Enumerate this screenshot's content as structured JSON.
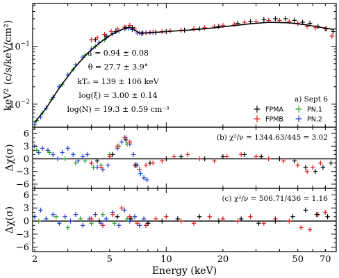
{
  "chart_data": {
    "type": "scatter",
    "shared_x": {
      "label": "Energy (keV)",
      "scale": "log",
      "range": [
        1.95,
        80
      ],
      "ticks": [
        2,
        5,
        10,
        20,
        50,
        70
      ],
      "tick_labels": [
        "2",
        "5",
        "10",
        "20",
        "50",
        "70"
      ]
    },
    "colors": {
      "FPMA": "#000000",
      "FPMB": "#e41a1c",
      "PN,1": "#2ca02c",
      "PN,2": "#1f3fd6",
      "model": "#000000"
    },
    "panels": [
      {
        "id": "spectrum",
        "ylabel": "keV² (c/s/keV/cm²)",
        "yscale": "log",
        "ylim": [
          0.004,
          0.55
        ],
        "ytick_labels": [
          {
            "value": 0.1,
            "base": "10",
            "exp": "−1"
          },
          {
            "value": 0.01,
            "base": "10",
            "exp": "−2"
          }
        ],
        "annotations": [
          "a = 0.94 ± 0.08",
          "θ = 27.7 ± 3.9°",
          "kTₑ = 139 ± 106 keV",
          "log(ξ) = 3.00 ± 0.14",
          "log(N) = 19.3 ± 0.59 cm⁻³"
        ],
        "panel_label": "a) Sept 6",
        "legend": [
          "FPMA",
          "FPMB",
          "PN,1",
          "PN,2"
        ],
        "series": [
          {
            "name": "PN,2",
            "x": [
              2.0,
              2.15,
              2.3,
              2.5,
              2.7,
              3.0,
              3.3,
              3.6,
              4.0,
              4.4,
              4.8,
              5.2,
              5.6,
              6.0,
              6.3,
              6.6,
              7.0,
              7.4,
              7.8,
              8.2
            ],
            "y": [
              0.0045,
              0.006,
              0.0085,
              0.013,
              0.02,
              0.032,
              0.048,
              0.065,
              0.09,
              0.115,
              0.14,
              0.165,
              0.185,
              0.2,
              0.205,
              0.195,
              0.17,
              0.165,
              0.172,
              0.175
            ]
          },
          {
            "name": "PN,1",
            "x": [
              2.05,
              2.2,
              2.45,
              2.8,
              3.2,
              3.7,
              4.2,
              4.7
            ],
            "y": [
              0.0052,
              0.007,
              0.012,
              0.022,
              0.04,
              0.07,
              0.1,
              0.13
            ]
          },
          {
            "name": "FPMB",
            "x": [
              4.0,
              4.3,
              4.7,
              5.1,
              5.5,
              6.0,
              6.4,
              6.8,
              7.2,
              7.8,
              8.5,
              9.5,
              10.5,
              12,
              14,
              16,
              18,
              20,
              23,
              26,
              30,
              35,
              40,
              45,
              50,
              56,
              62,
              70,
              76
            ],
            "y": [
              0.13,
              0.14,
              0.16,
              0.18,
              0.2,
              0.215,
              0.23,
              0.2,
              0.17,
              0.17,
              0.175,
              0.18,
              0.185,
              0.19,
              0.2,
              0.21,
              0.22,
              0.23,
              0.24,
              0.26,
              0.27,
              0.28,
              0.28,
              0.27,
              0.25,
              0.22,
              0.21,
              0.2,
              0.15
            ]
          },
          {
            "name": "FPMA",
            "x": [
              4.2,
              4.8,
              5.4,
              6.1,
              6.6,
              7.5,
              8.8,
              10,
              12.5,
              15,
              19,
              24,
              28,
              33,
              38,
              43,
              48,
              53,
              58,
              64,
              71,
              77
            ],
            "y": [
              0.13,
              0.15,
              0.18,
              0.21,
              0.21,
              0.17,
              0.175,
              0.18,
              0.19,
              0.2,
              0.22,
              0.25,
              0.27,
              0.29,
              0.3,
              0.3,
              0.28,
              0.26,
              0.25,
              0.22,
              0.2,
              0.18
            ]
          },
          {
            "name": "model",
            "x": [
              2.0,
              2.3,
              2.7,
              3.2,
              3.8,
              4.5,
              5.2,
              5.9,
              6.4,
              6.8,
              7.2,
              8.0,
              10,
              13,
              17,
              22,
              28,
              35,
              45,
              55,
              65,
              78
            ],
            "y": [
              0.0048,
              0.0085,
              0.019,
              0.04,
              0.075,
              0.12,
              0.165,
              0.2,
              0.215,
              0.19,
              0.17,
              0.17,
              0.18,
              0.19,
              0.205,
              0.225,
              0.245,
              0.26,
              0.255,
              0.235,
              0.215,
              0.195
            ]
          }
        ]
      },
      {
        "id": "residuals-b",
        "ylabel": "Δχ(σ)",
        "yscale": "linear",
        "ylim": [
          -7,
          7.5
        ],
        "yticks": [
          6,
          3,
          0,
          -3,
          -6
        ],
        "ytick_labels": [
          "6",
          "3",
          "0",
          "−3",
          "−6"
        ],
        "note": "(b) χ²/ν = 1344.63/445 = 3.02",
        "series": [
          {
            "name": "PN,2",
            "x": [
              2.0,
              2.1,
              2.2,
              2.35,
              2.5,
              2.65,
              2.8,
              3.0,
              3.2,
              3.4,
              3.6,
              3.8,
              4.0,
              4.3,
              4.6,
              4.9,
              5.2,
              5.5,
              5.8,
              6.1,
              6.4,
              6.7,
              7.0,
              7.3,
              7.6,
              7.9
            ],
            "y": [
              3.0,
              1.5,
              2.5,
              2.0,
              1.0,
              0.0,
              1.5,
              2.5,
              1.0,
              -0.5,
              0.5,
              1.0,
              -1.0,
              -2.0,
              -2.5,
              -1.5,
              1.0,
              2.5,
              4.0,
              5.0,
              3.5,
              1.0,
              -1.5,
              -3.5,
              -4.5,
              -5.0
            ]
          },
          {
            "name": "PN,1",
            "x": [
              2.05,
              2.4,
              2.9,
              3.3,
              3.7,
              4.1,
              4.5,
              5.0,
              5.6,
              6.2
            ],
            "y": [
              2.0,
              1.5,
              0.0,
              -1.0,
              -0.5,
              -2.0,
              -1.5,
              1.0,
              3.0,
              3.5
            ]
          },
          {
            "name": "FPMB",
            "x": [
              4.0,
              4.5,
              5.0,
              5.5,
              6.0,
              6.4,
              6.8,
              7.2,
              7.8,
              8.5,
              9.5,
              11,
              13,
              15,
              18,
              21,
              25,
              30,
              35,
              42,
              50,
              56,
              60,
              66
            ],
            "y": [
              -1.0,
              -2.0,
              0.5,
              3.0,
              5.0,
              4.0,
              -1.5,
              -2.5,
              -1.5,
              -1.0,
              -0.5,
              0.5,
              1.0,
              0.0,
              -0.5,
              0.5,
              1.0,
              0.5,
              0.0,
              -0.5,
              -1.5,
              -3.0,
              -2.0,
              -1.0
            ]
          },
          {
            "name": "FPMA",
            "x": [
              4.3,
              5.2,
              6.1,
              6.9,
              8.2,
              10,
              12,
              16,
              20,
              26,
              32,
              40,
              48,
              55,
              62,
              68,
              75
            ],
            "y": [
              -0.5,
              1.0,
              4.5,
              -1.5,
              -1.0,
              0.0,
              0.5,
              0.0,
              0.5,
              1.0,
              0.5,
              0.0,
              -0.5,
              -2.0,
              -3.0,
              -2.0,
              -1.0
            ]
          }
        ]
      },
      {
        "id": "residuals-c",
        "ylabel": "Δχ(σ)",
        "yscale": "linear",
        "ylim": [
          -7,
          7.5
        ],
        "yticks": [
          6,
          3,
          0,
          -3,
          -6
        ],
        "ytick_labels": [
          "6",
          "3",
          "0",
          "−3",
          "−6"
        ],
        "note": "(c) χ²/ν = 506.71/436 = 1.16",
        "series": [
          {
            "name": "PN,2",
            "x": [
              2.0,
              2.15,
              2.3,
              2.5,
              2.7,
              2.9,
              3.1,
              3.3,
              3.6,
              3.9,
              4.2,
              4.5,
              4.8,
              5.2,
              5.6,
              6.0,
              6.4,
              6.8,
              7.2,
              7.6,
              8.0
            ],
            "y": [
              1.0,
              2.5,
              0.5,
              1.5,
              -0.5,
              1.0,
              0.0,
              1.5,
              -1.0,
              0.5,
              1.5,
              -0.5,
              0.5,
              2.0,
              -1.0,
              2.5,
              0.0,
              1.0,
              -1.0,
              0.5,
              -0.5
            ]
          },
          {
            "name": "PN,1",
            "x": [
              2.1,
              2.6,
              3.0,
              3.5,
              4.0,
              4.6,
              5.3,
              6.2
            ],
            "y": [
              0.0,
              1.0,
              -1.5,
              0.5,
              -0.5,
              1.5,
              -0.5,
              0.5
            ]
          },
          {
            "name": "FPMB",
            "x": [
              4.0,
              4.6,
              5.2,
              5.8,
              6.4,
              7.0,
              7.8,
              8.8,
              10,
              12,
              14,
              17,
              20,
              24,
              28,
              33,
              38,
              45,
              52,
              58,
              64,
              70
            ],
            "y": [
              0.5,
              -1.0,
              1.5,
              3.0,
              1.0,
              -0.5,
              -1.0,
              0.5,
              1.0,
              0.0,
              -0.5,
              1.0,
              0.5,
              0.0,
              1.0,
              -0.5,
              0.5,
              0.0,
              -1.5,
              -2.0,
              1.5,
              2.0
            ]
          },
          {
            "name": "FPMA",
            "x": [
              4.4,
              5.5,
              6.5,
              8.0,
              9.5,
              11.5,
              15,
              19,
              25,
              31,
              38,
              47,
              55,
              63,
              72
            ],
            "y": [
              0.0,
              1.0,
              0.5,
              -0.5,
              0.0,
              0.5,
              1.0,
              0.0,
              0.5,
              -0.5,
              0.0,
              1.0,
              2.5,
              1.5,
              1.0
            ]
          }
        ]
      }
    ]
  }
}
